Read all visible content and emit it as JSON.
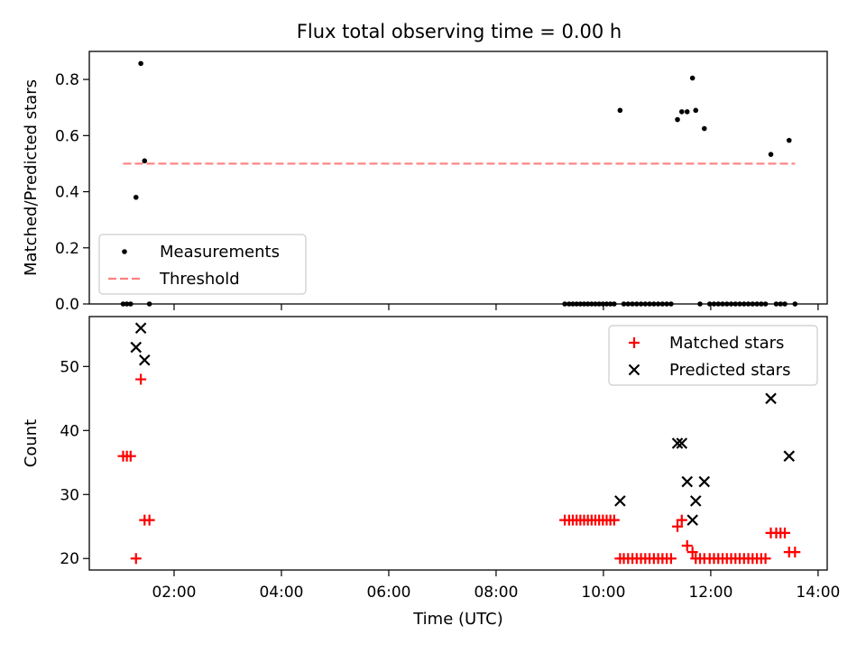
{
  "title": "Flux total observing time = 0.00 h",
  "chart_data": [
    {
      "type": "scatter",
      "ylabel": "Matched/Predicted stars",
      "xlabel": "",
      "xlim": [
        0.42,
        14.17
      ],
      "ylim": [
        0,
        0.9
      ],
      "yticks": [
        0.0,
        0.2,
        0.4,
        0.6,
        0.8
      ],
      "ytick_labels": [
        "0.0",
        "0.2",
        "0.4",
        "0.6",
        "0.8"
      ],
      "xticks": [
        2,
        4,
        6,
        8,
        10,
        12,
        14
      ],
      "grid": false,
      "legend_position": "lower-left",
      "series": [
        {
          "name": "Measurements",
          "marker": "dot",
          "color": "#000000",
          "x": [
            1.05,
            1.12,
            1.19,
            1.29,
            1.38,
            1.45,
            1.54,
            9.28,
            9.36,
            9.43,
            9.5,
            9.57,
            9.64,
            9.71,
            9.78,
            9.85,
            9.92,
            9.99,
            10.06,
            10.13,
            10.2,
            10.31,
            10.38,
            10.46,
            10.54,
            10.62,
            10.7,
            10.78,
            10.86,
            10.94,
            11.02,
            11.1,
            11.18,
            11.26,
            11.38,
            11.46,
            11.56,
            11.66,
            11.72,
            11.8,
            11.88,
            11.98,
            12.06,
            12.14,
            12.22,
            12.3,
            12.38,
            12.46,
            12.54,
            12.62,
            12.7,
            12.78,
            12.86,
            12.94,
            13.02,
            13.12,
            13.22,
            13.3,
            13.38,
            13.46,
            13.57
          ],
          "values": [
            0,
            0,
            0,
            0.38,
            0.857,
            0.51,
            0,
            0,
            0,
            0,
            0,
            0,
            0,
            0,
            0,
            0,
            0,
            0,
            0,
            0,
            0,
            0.69,
            0,
            0,
            0,
            0,
            0,
            0,
            0,
            0,
            0,
            0,
            0,
            0,
            0.657,
            0.685,
            0.685,
            0.805,
            0.69,
            0,
            0.625,
            0,
            0,
            0,
            0,
            0,
            0,
            0,
            0,
            0,
            0,
            0,
            0,
            0,
            0,
            0.533,
            0,
            0,
            0,
            0.583,
            0
          ]
        },
        {
          "name": "Threshold",
          "style": "dashed",
          "color": "#ff7f7f",
          "x": [
            1.05,
            13.57
          ],
          "values": [
            0.5,
            0.5
          ]
        }
      ]
    },
    {
      "type": "scatter",
      "ylabel": "Count",
      "xlabel": "Time (UTC)",
      "xlim": [
        0.42,
        14.17
      ],
      "ylim": [
        18.2,
        57.8
      ],
      "yticks": [
        20,
        30,
        40,
        50
      ],
      "ytick_labels": [
        "20",
        "30",
        "40",
        "50"
      ],
      "xticks": [
        2,
        4,
        6,
        8,
        10,
        12,
        14
      ],
      "xtick_labels": [
        "02:00",
        "04:00",
        "06:00",
        "08:00",
        "10:00",
        "12:00",
        "14:00"
      ],
      "grid": false,
      "legend_position": "upper-right",
      "series": [
        {
          "name": "Matched stars",
          "marker": "plus",
          "color": "#ff0000",
          "x": [
            1.05,
            1.12,
            1.19,
            1.29,
            1.38,
            1.45,
            1.54,
            9.28,
            9.36,
            9.43,
            9.5,
            9.57,
            9.64,
            9.71,
            9.78,
            9.85,
            9.92,
            9.99,
            10.06,
            10.13,
            10.2,
            10.31,
            10.38,
            10.46,
            10.54,
            10.62,
            10.7,
            10.78,
            10.86,
            10.94,
            11.02,
            11.1,
            11.18,
            11.26,
            11.38,
            11.46,
            11.56,
            11.66,
            11.72,
            11.8,
            11.88,
            11.98,
            12.06,
            12.14,
            12.22,
            12.3,
            12.38,
            12.46,
            12.54,
            12.62,
            12.7,
            12.78,
            12.86,
            12.94,
            13.02,
            13.12,
            13.22,
            13.3,
            13.38,
            13.46,
            13.57
          ],
          "values": [
            36,
            36,
            36,
            20,
            48,
            26,
            26,
            26,
            26,
            26,
            26,
            26,
            26,
            26,
            26,
            26,
            26,
            26,
            26,
            26,
            26,
            20,
            20,
            20,
            20,
            20,
            20,
            20,
            20,
            20,
            20,
            20,
            20,
            20,
            25,
            26,
            22,
            21,
            20,
            20,
            20,
            20,
            20,
            20,
            20,
            20,
            20,
            20,
            20,
            20,
            20,
            20,
            20,
            20,
            20,
            24,
            24,
            24,
            24,
            21,
            21
          ]
        },
        {
          "name": "Predicted stars",
          "marker": "x",
          "color": "#000000",
          "x": [
            1.29,
            1.38,
            1.45,
            10.31,
            11.38,
            11.46,
            11.56,
            11.66,
            11.72,
            11.88,
            13.12,
            13.46
          ],
          "values": [
            53,
            56,
            51,
            29,
            38,
            38,
            32,
            26,
            29,
            32,
            45,
            36
          ]
        }
      ]
    }
  ]
}
